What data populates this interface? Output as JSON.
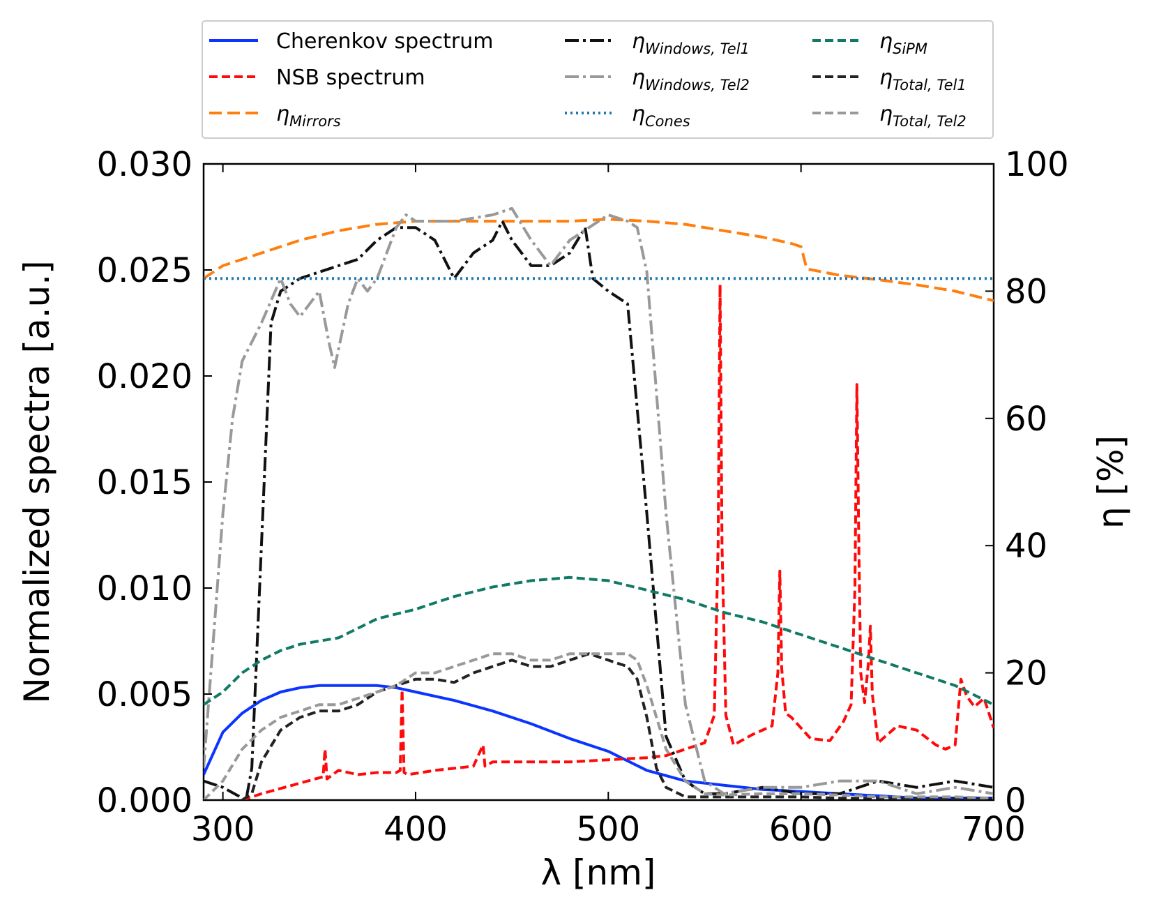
{
  "chart_data": {
    "type": "line",
    "xlabel": "λ [nm]",
    "ylabel_left": "Normalized spectra [a.u.]",
    "ylabel_right": "η [%]",
    "xlim": [
      290,
      700
    ],
    "ylim_left": [
      0,
      0.03
    ],
    "ylim_right": [
      0,
      100
    ],
    "x_ticks": [
      "300",
      "400",
      "500",
      "600",
      "700"
    ],
    "y_left_ticks": [
      "0.000",
      "0.005",
      "0.010",
      "0.015",
      "0.020",
      "0.025",
      "0.030"
    ],
    "y_right_ticks": [
      "0",
      "20",
      "40",
      "60",
      "80",
      "100"
    ],
    "grid": false,
    "legend_position": "top, above plot, 3 columns",
    "series": [
      {
        "name": "Cherenkov spectrum",
        "legend_sub": "",
        "axis": "left",
        "color": "#0b35ff",
        "style": "solid",
        "x": [
          290,
          300,
          310,
          320,
          330,
          340,
          350,
          360,
          370,
          380,
          390,
          400,
          420,
          440,
          460,
          480,
          500,
          520,
          540,
          560,
          580,
          600,
          620,
          640,
          660,
          680,
          700
        ],
        "y": [
          0.0012,
          0.0032,
          0.0041,
          0.0047,
          0.0051,
          0.0053,
          0.0054,
          0.0054,
          0.0054,
          0.0054,
          0.0053,
          0.0051,
          0.0047,
          0.0042,
          0.0036,
          0.0029,
          0.0023,
          0.0014,
          0.0009,
          0.0007,
          0.0005,
          0.0004,
          0.0003,
          0.0002,
          0.0001,
          0.0001,
          0.0001
        ]
      },
      {
        "name": "NSB spectrum",
        "legend_sub": "",
        "axis": "left",
        "color": "#ff0a0a",
        "style": "dashed",
        "x": [
          310,
          320,
          340,
          352,
          353,
          354,
          360,
          370,
          380,
          390,
          392,
          393,
          394,
          396,
          410,
          430,
          435,
          436,
          440,
          460,
          480,
          500,
          520,
          530,
          540,
          550,
          555,
          557,
          558,
          559,
          561,
          565,
          575,
          585,
          588,
          589,
          590,
          592,
          595,
          605,
          615,
          622,
          626,
          628,
          629,
          630,
          631,
          633,
          635,
          636,
          637,
          640,
          650,
          660,
          670,
          675,
          680,
          683,
          686,
          690,
          695,
          700
        ],
        "y": [
          0.0,
          0.0003,
          0.0008,
          0.0011,
          0.0024,
          0.001,
          0.0014,
          0.0012,
          0.0013,
          0.0013,
          0.0014,
          0.0052,
          0.0013,
          0.0012,
          0.0014,
          0.0016,
          0.0026,
          0.0016,
          0.0018,
          0.0018,
          0.0018,
          0.0019,
          0.002,
          0.0021,
          0.0024,
          0.0027,
          0.004,
          0.012,
          0.0243,
          0.012,
          0.004,
          0.0026,
          0.0031,
          0.0035,
          0.006,
          0.0108,
          0.0062,
          0.0041,
          0.0039,
          0.0029,
          0.0028,
          0.0037,
          0.0045,
          0.01,
          0.0196,
          0.012,
          0.006,
          0.0046,
          0.0065,
          0.0082,
          0.005,
          0.0027,
          0.0035,
          0.0033,
          0.0026,
          0.0024,
          0.0026,
          0.0057,
          0.0049,
          0.0044,
          0.0048,
          0.0034
        ]
      },
      {
        "name": "η",
        "legend_sub": "Mirrors",
        "axis": "right",
        "color": "#ff7f0e",
        "style": "longdash",
        "x": [
          290,
          300,
          320,
          340,
          360,
          380,
          400,
          420,
          440,
          460,
          480,
          500,
          520,
          540,
          560,
          580,
          595,
          600,
          603,
          620,
          640,
          660,
          680,
          700
        ],
        "y": [
          82,
          84,
          86,
          88,
          89.5,
          90.5,
          91,
          91,
          91,
          91,
          91,
          91.3,
          91,
          90.5,
          89.5,
          88.5,
          87.5,
          87,
          83.5,
          82.5,
          81.8,
          81,
          80,
          78.5
        ]
      },
      {
        "name": "η",
        "legend_sub": "Windows, Tel1",
        "axis": "right",
        "color": "#111111",
        "style": "dashdot",
        "x": [
          290,
          300,
          312,
          315,
          320,
          325,
          330,
          340,
          350,
          360,
          370,
          380,
          390,
          400,
          410,
          420,
          430,
          440,
          445,
          450,
          460,
          470,
          480,
          488,
          492,
          500,
          510,
          520,
          530,
          540,
          550,
          560,
          580,
          600,
          620,
          640,
          660,
          680,
          700
        ],
        "y": [
          3,
          2,
          0,
          5,
          40,
          75,
          80,
          82,
          83,
          84,
          85,
          88,
          90,
          90,
          88,
          82,
          86,
          88,
          91,
          88,
          84,
          84,
          86,
          90,
          82,
          80,
          78,
          45,
          10,
          3,
          1,
          1,
          2,
          1,
          1,
          3,
          2,
          3,
          2
        ]
      },
      {
        "name": "η",
        "legend_sub": "Windows, Tel2",
        "axis": "right",
        "color": "#999999",
        "style": "dashdot",
        "x": [
          290,
          300,
          305,
          310,
          320,
          330,
          335,
          340,
          350,
          355,
          358,
          365,
          370,
          375,
          380,
          390,
          395,
          400,
          420,
          440,
          450,
          460,
          470,
          480,
          490,
          500,
          510,
          515,
          520,
          530,
          540,
          550,
          560,
          580,
          600,
          620,
          640,
          660,
          680,
          700
        ],
        "y": [
          5,
          45,
          60,
          69,
          75,
          82,
          78,
          76,
          80,
          72,
          68,
          78,
          82,
          80,
          82,
          90,
          92,
          91,
          91,
          92,
          93,
          88,
          84,
          88,
          90,
          92,
          91,
          90,
          83,
          45,
          15,
          3,
          1,
          2,
          2,
          3,
          3,
          1,
          2,
          1
        ]
      },
      {
        "name": "η",
        "legend_sub": "Cones",
        "axis": "right",
        "color": "#1f77b4",
        "style": "dotted",
        "x": [
          290,
          700
        ],
        "y": [
          82,
          82
        ]
      },
      {
        "name": "η",
        "legend_sub": "SiPM",
        "axis": "right",
        "color": "#117a65",
        "style": "dashed",
        "x": [
          290,
          300,
          310,
          320,
          330,
          340,
          360,
          370,
          380,
          400,
          420,
          440,
          460,
          480,
          500,
          520,
          540,
          560,
          580,
          600,
          620,
          640,
          660,
          680,
          700
        ],
        "y": [
          15,
          17,
          20,
          22,
          23.5,
          24.5,
          25.5,
          27,
          28.5,
          30,
          32,
          33.5,
          34.5,
          35,
          34.5,
          33,
          31.5,
          29.5,
          28,
          26,
          24,
          22,
          20,
          18,
          15
        ]
      },
      {
        "name": "η",
        "legend_sub": "Total, Tel1",
        "axis": "right",
        "color": "#222222",
        "style": "dashed",
        "x": [
          310,
          315,
          320,
          330,
          340,
          350,
          360,
          370,
          380,
          390,
          400,
          410,
          420,
          430,
          440,
          450,
          460,
          470,
          480,
          490,
          500,
          510,
          515,
          520,
          525,
          530,
          540,
          550,
          560,
          580,
          600,
          620,
          640,
          660,
          680,
          700
        ],
        "y": [
          0,
          1,
          6,
          11,
          13,
          14,
          14,
          15,
          17,
          18,
          19,
          19,
          18.5,
          20,
          21,
          22,
          21,
          21,
          22,
          23,
          22,
          21,
          19,
          13,
          5,
          2,
          0.5,
          0.5,
          0.5,
          0.5,
          0.5,
          0.3,
          0.3,
          0.2,
          0.2,
          0.2
        ]
      },
      {
        "name": "η",
        "legend_sub": "Total, Tel2",
        "axis": "right",
        "color": "#999999",
        "style": "dashed",
        "x": [
          290,
          300,
          310,
          320,
          330,
          340,
          350,
          360,
          370,
          380,
          390,
          400,
          410,
          420,
          430,
          440,
          450,
          460,
          470,
          480,
          490,
          500,
          510,
          515,
          520,
          530,
          540,
          550,
          560,
          580,
          600,
          620,
          640,
          660,
          680,
          700
        ],
        "y": [
          0,
          3,
          8,
          11,
          13,
          14,
          15,
          15,
          16,
          17,
          18,
          20,
          20,
          21,
          22,
          23,
          23,
          22,
          22,
          23,
          23,
          23,
          23,
          22,
          18,
          8,
          3,
          1,
          0.8,
          1,
          1,
          0.8,
          0.5,
          0.5,
          0.5,
          0.3
        ]
      }
    ]
  }
}
